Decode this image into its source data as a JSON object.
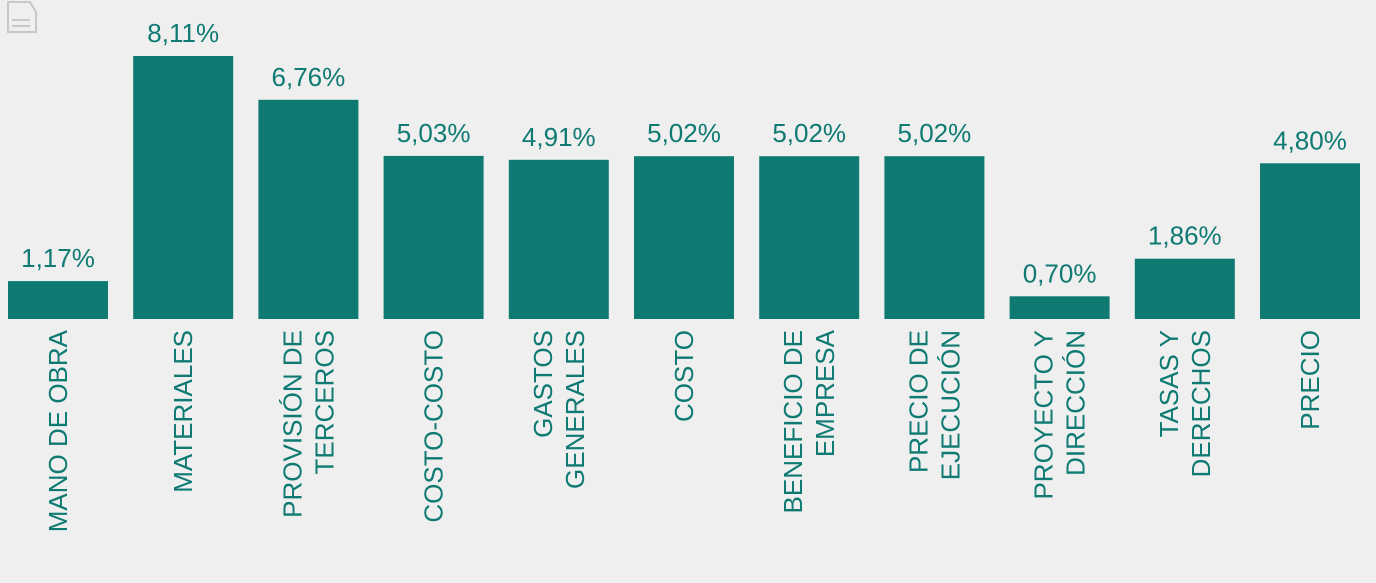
{
  "colors": {
    "background": "#efeff0",
    "bar": "#0e7a72",
    "text": "#0e7a72"
  },
  "icons": {
    "corner": "document-icon"
  },
  "chart_data": {
    "type": "bar",
    "categories": [
      [
        "MANO DE OBRA"
      ],
      [
        "MATERIALES"
      ],
      [
        "PROVISIÓN DE",
        "TERCEROS"
      ],
      [
        "COSTO-COSTO"
      ],
      [
        "GASTOS",
        "GENERALES"
      ],
      [
        "COSTO"
      ],
      [
        "BENEFICIO DE",
        "EMPRESA"
      ],
      [
        "PRECIO DE",
        "EJECUCIÓN"
      ],
      [
        "PROYECTO Y",
        "DIRECCIÓN"
      ],
      [
        "TASAS Y",
        "DERECHOS"
      ],
      [
        "PRECIO"
      ]
    ],
    "values": [
      1.17,
      8.11,
      6.76,
      5.03,
      4.91,
      5.02,
      5.02,
      5.02,
      0.7,
      1.86,
      4.8
    ],
    "value_labels": [
      "1,17%",
      "8,11%",
      "6,76%",
      "5,03%",
      "4,91%",
      "5,02%",
      "5,02%",
      "5,02%",
      "0,70%",
      "1,86%",
      "4,80%"
    ],
    "title": "",
    "xlabel": "",
    "ylabel": "",
    "ylim": [
      0,
      8.11
    ],
    "grid": false,
    "legend": "none"
  }
}
